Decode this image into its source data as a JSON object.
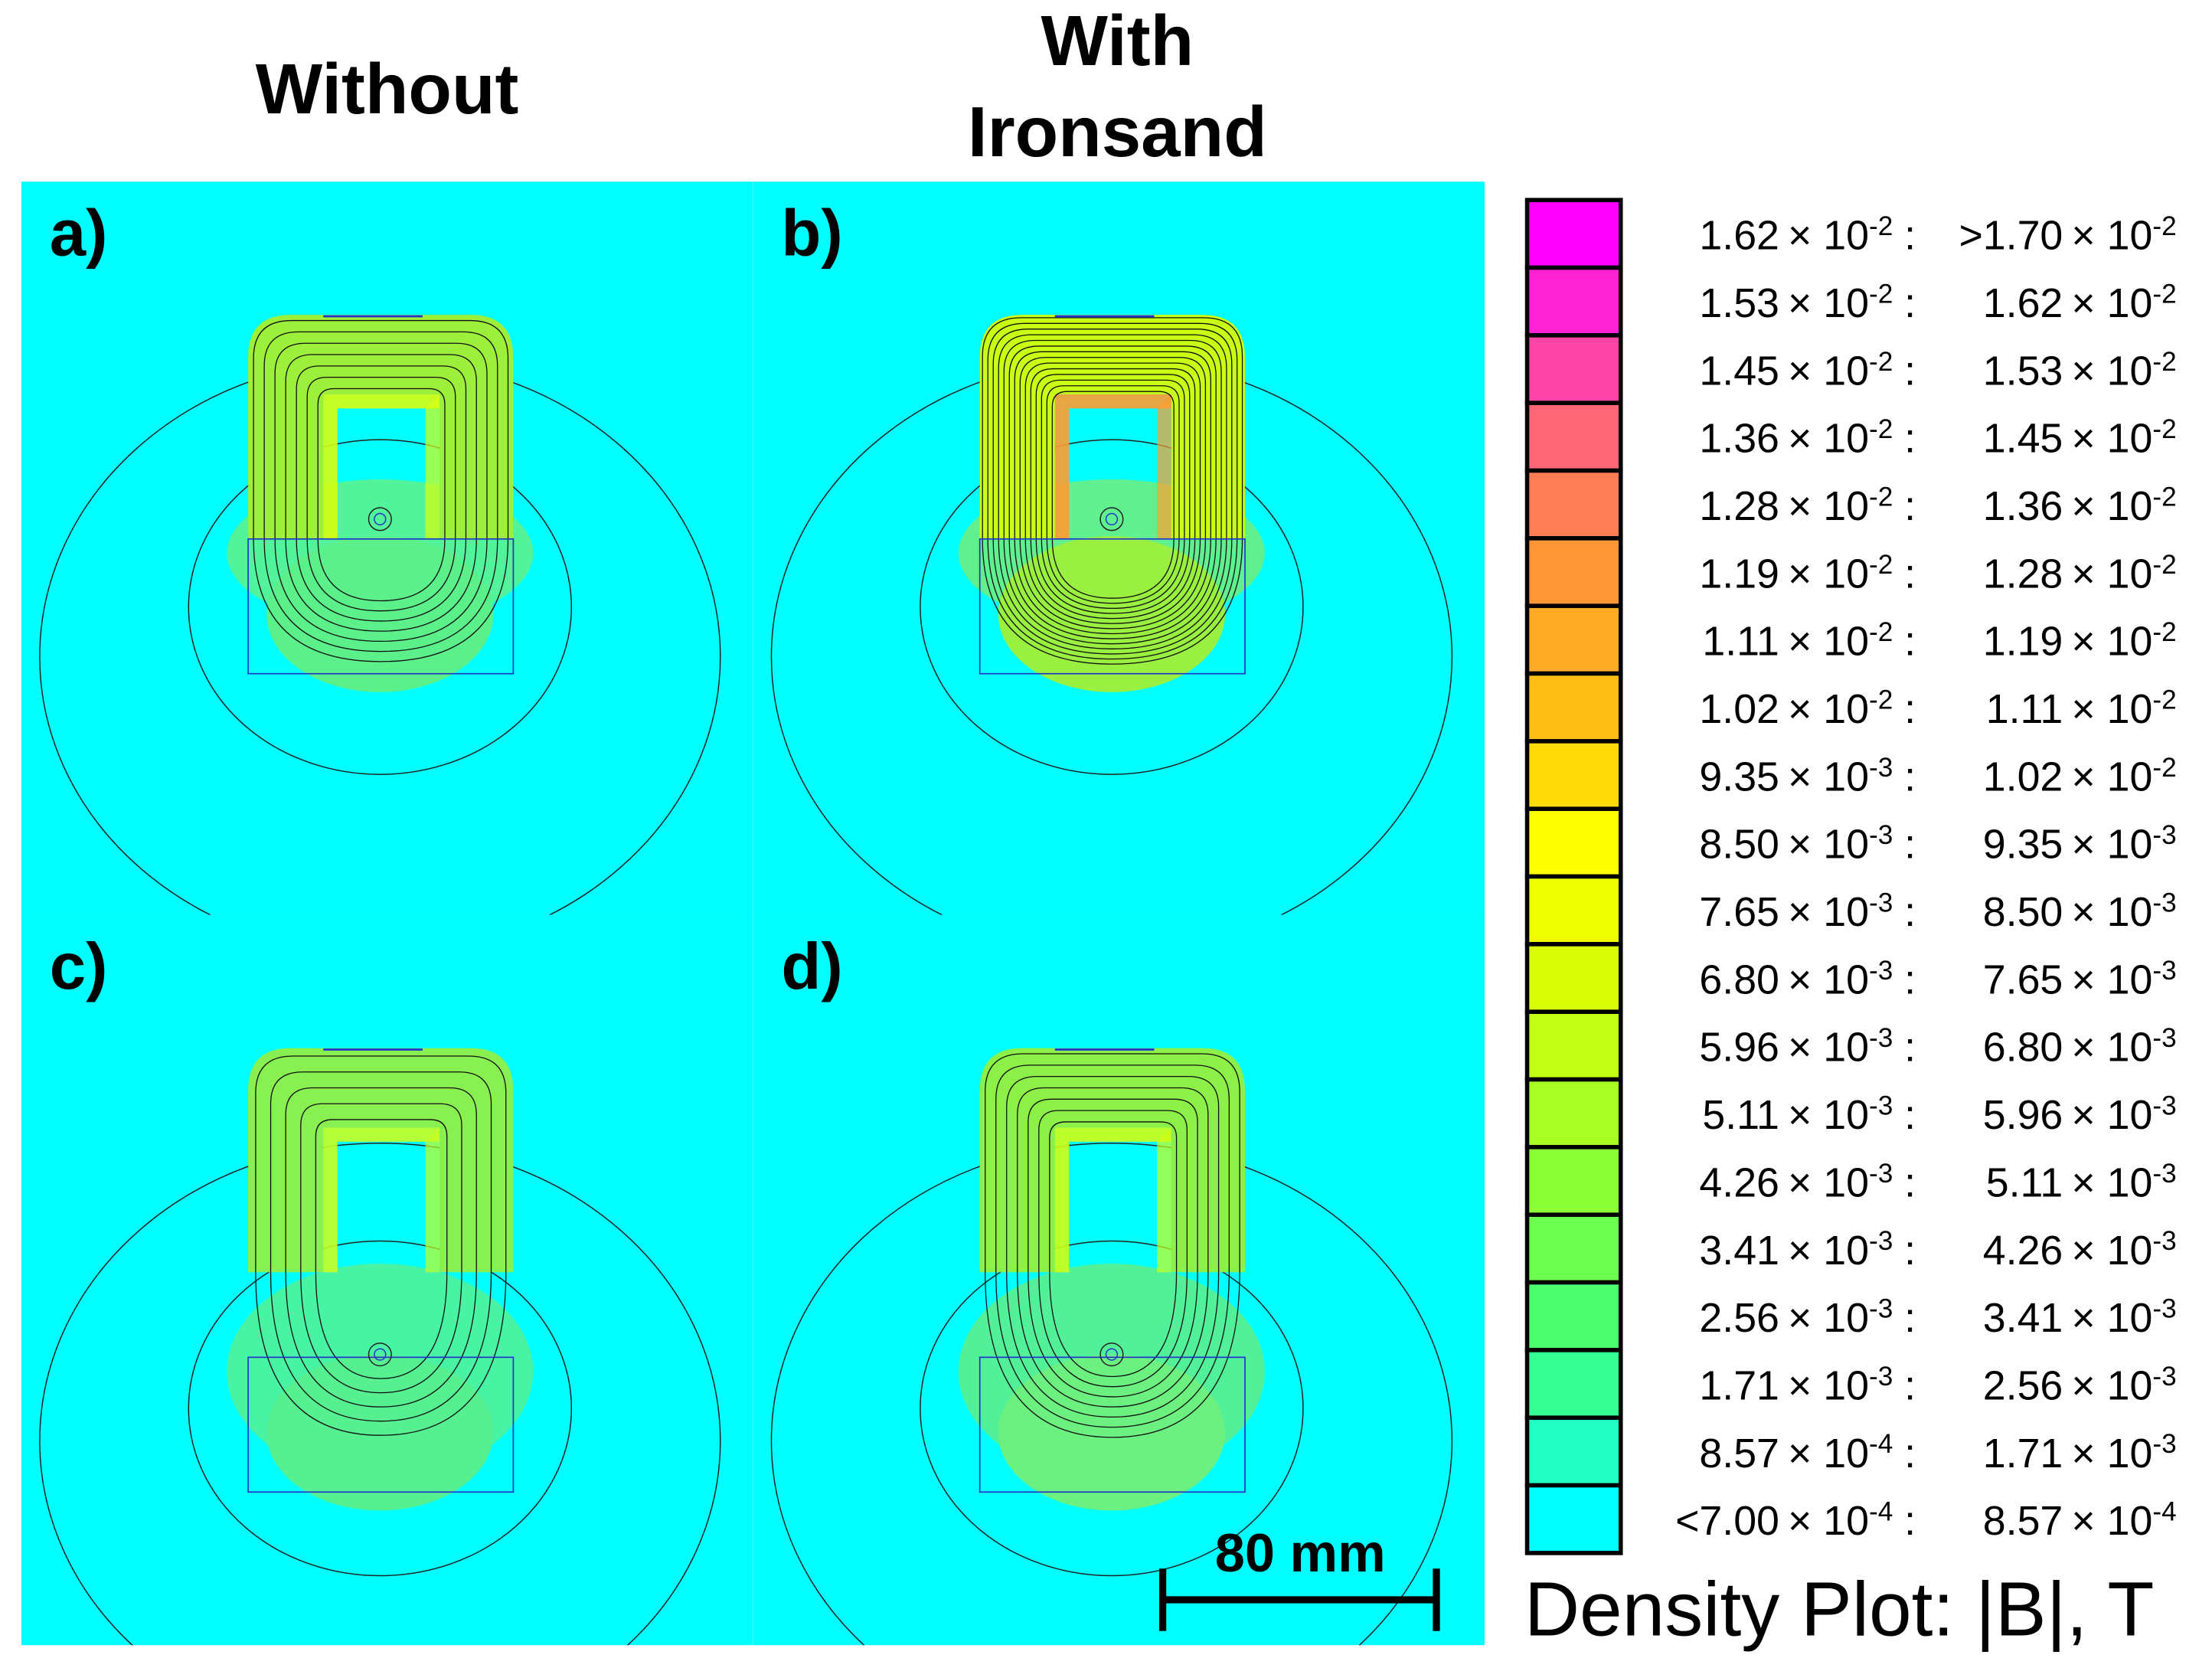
{
  "headers": [
    {
      "lines": [
        "Without"
      ]
    },
    {
      "lines": [
        "With",
        "Ironsand"
      ]
    }
  ],
  "panels": [
    {
      "label": "a)"
    },
    {
      "label": "b)"
    },
    {
      "label": "c)"
    },
    {
      "label": "d)"
    }
  ],
  "scale_bar": {
    "label": "80 mm"
  },
  "legend": {
    "times": "× 10",
    "separator": ":",
    "title": "Density Plot: |B|, T",
    "rows": [
      {
        "color": "#ff00ff",
        "from": "1.62",
        "from_exp": "-2",
        "to": ">1.70",
        "to_exp": "-2"
      },
      {
        "color": "#ff22d4",
        "from": "1.53",
        "from_exp": "-2",
        "to": "1.62",
        "to_exp": "-2"
      },
      {
        "color": "#ff44a8",
        "from": "1.45",
        "from_exp": "-2",
        "to": "1.53",
        "to_exp": "-2"
      },
      {
        "color": "#ff6677",
        "from": "1.36",
        "from_exp": "-2",
        "to": "1.45",
        "to_exp": "-2"
      },
      {
        "color": "#ff7d55",
        "from": "1.28",
        "from_exp": "-2",
        "to": "1.36",
        "to_exp": "-2"
      },
      {
        "color": "#ff9638",
        "from": "1.19",
        "from_exp": "-2",
        "to": "1.28",
        "to_exp": "-2"
      },
      {
        "color": "#ffab26",
        "from": "1.11",
        "from_exp": "-2",
        "to": "1.19",
        "to_exp": "-2"
      },
      {
        "color": "#ffbe14",
        "from": "1.02",
        "from_exp": "-2",
        "to": "1.11",
        "to_exp": "-2"
      },
      {
        "color": "#ffd808",
        "from": "9.35",
        "from_exp": "-3",
        "to": "1.02",
        "to_exp": "-2"
      },
      {
        "color": "#ffff00",
        "from": "8.50",
        "from_exp": "-3",
        "to": "9.35",
        "to_exp": "-3"
      },
      {
        "color": "#eeff00",
        "from": "7.65",
        "from_exp": "-3",
        "to": "8.50",
        "to_exp": "-3"
      },
      {
        "color": "#d8ff08",
        "from": "6.80",
        "from_exp": "-3",
        "to": "7.65",
        "to_exp": "-3"
      },
      {
        "color": "#c2ff14",
        "from": "5.96",
        "from_exp": "-3",
        "to": "6.80",
        "to_exp": "-3"
      },
      {
        "color": "#a8ff24",
        "from": "5.11",
        "from_exp": "-3",
        "to": "5.96",
        "to_exp": "-3"
      },
      {
        "color": "#8cff36",
        "from": "4.26",
        "from_exp": "-3",
        "to": "5.11",
        "to_exp": "-3"
      },
      {
        "color": "#6cff50",
        "from": "3.41",
        "from_exp": "-3",
        "to": "4.26",
        "to_exp": "-3"
      },
      {
        "color": "#4cff70",
        "from": "2.56",
        "from_exp": "-3",
        "to": "3.41",
        "to_exp": "-3"
      },
      {
        "color": "#36ff96",
        "from": "1.71",
        "from_exp": "-3",
        "to": "2.56",
        "to_exp": "-3"
      },
      {
        "color": "#22ffc4",
        "from": "8.57",
        "from_exp": "-4",
        "to": "1.71",
        "to_exp": "-3"
      },
      {
        "color": "#00ffff",
        "from": "<7.00",
        "from_exp": "-4",
        "to": "8.57",
        "to_exp": "-4"
      }
    ]
  }
}
